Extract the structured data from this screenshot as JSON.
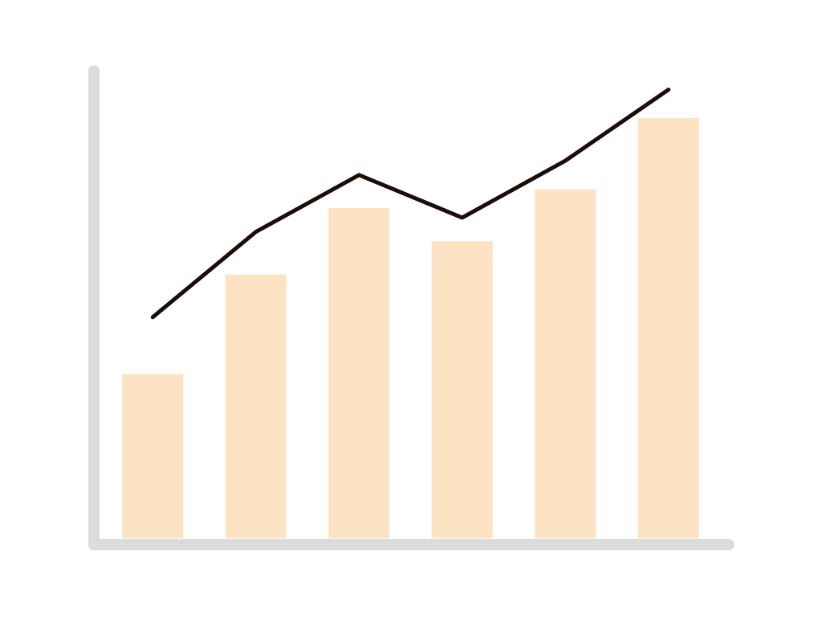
{
  "chart_data": {
    "type": "bar",
    "categories": [
      null,
      null,
      null,
      null,
      null,
      null
    ],
    "series": [
      {
        "type": "bar",
        "color": "#fce3c4",
        "values": [
          36,
          57,
          71,
          64,
          75,
          90
        ]
      },
      {
        "type": "line",
        "color": "#1a0d0a",
        "values": [
          48,
          66,
          78,
          69,
          81,
          96
        ]
      }
    ],
    "ylim": [
      0,
      100
    ],
    "axis_color": "#dcdcdc"
  }
}
